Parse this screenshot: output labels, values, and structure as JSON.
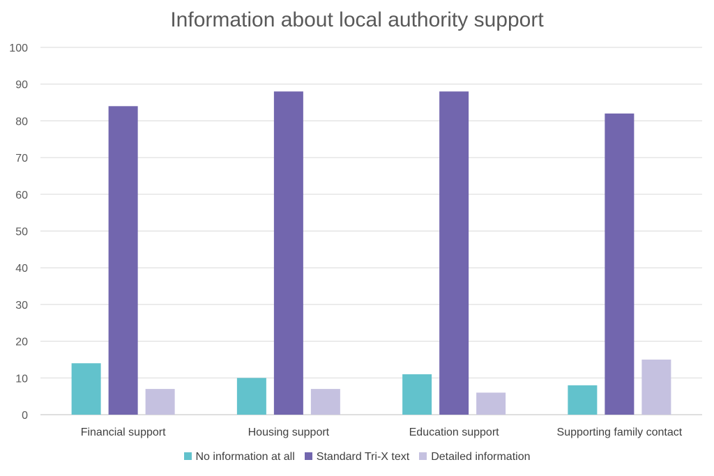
{
  "chart_data": {
    "type": "bar",
    "title": "Information about local authority support",
    "categories": [
      "Financial support",
      "Housing support",
      "Education support",
      "Supporting family contact"
    ],
    "series": [
      {
        "name": "No information at all",
        "color": "#62c2cc",
        "values": [
          14,
          10,
          11,
          8
        ]
      },
      {
        "name": "Standard Tri-X text",
        "color": "#7266ae",
        "values": [
          84,
          88,
          88,
          82
        ]
      },
      {
        "name": "Detailed information",
        "color": "#c5c1e0",
        "values": [
          7,
          7,
          6,
          15
        ]
      }
    ],
    "ylim": [
      0,
      100
    ],
    "yticks": [
      0,
      10,
      20,
      30,
      40,
      50,
      60,
      70,
      80,
      90,
      100
    ],
    "grid": true,
    "legend_position": "bottom"
  }
}
